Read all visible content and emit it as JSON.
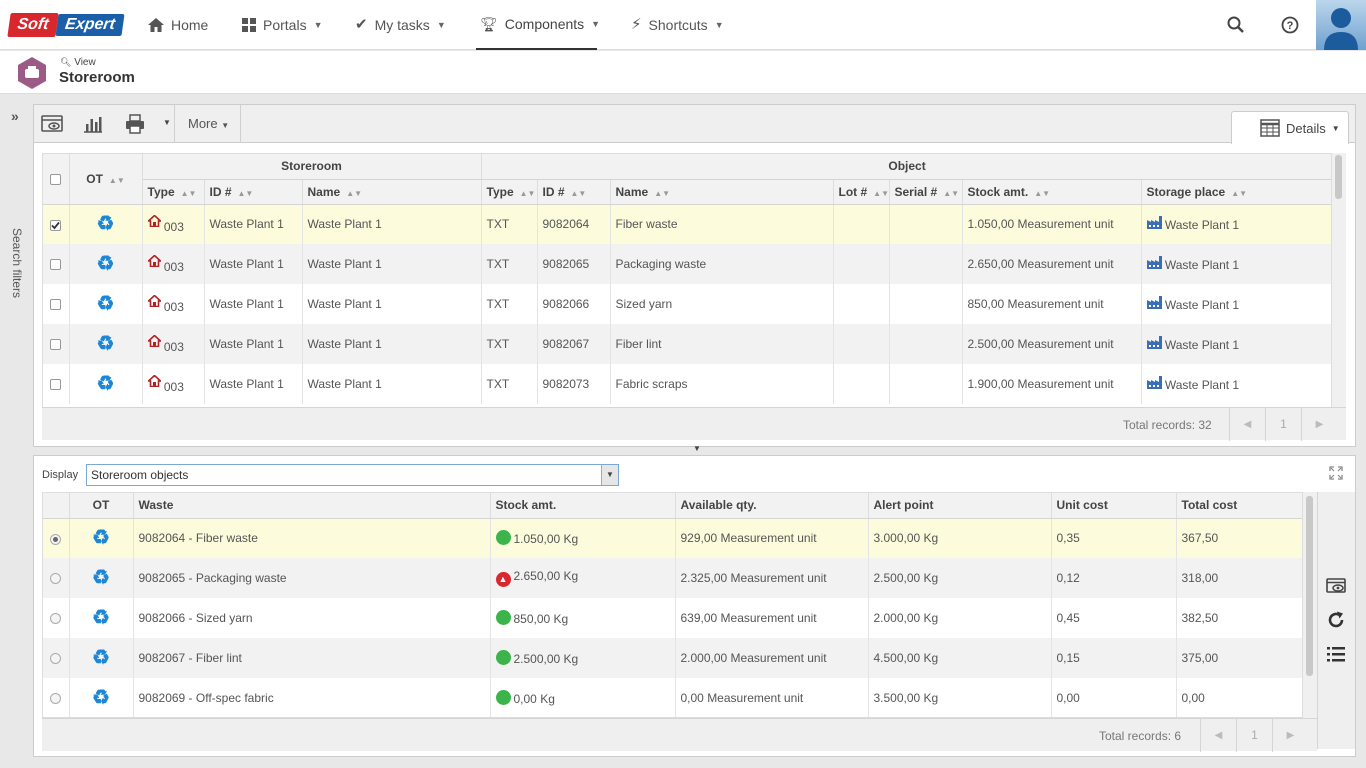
{
  "brand": {
    "soft": "Soft",
    "expert": "Expert"
  },
  "nav": {
    "home": "Home",
    "portals": "Portals",
    "my_tasks": "My tasks",
    "components": "Components",
    "shortcuts": "Shortcuts"
  },
  "header": {
    "view_label": "View",
    "title": "Storeroom"
  },
  "side_filters": {
    "label": "Search filters"
  },
  "toolbar": {
    "more": "More",
    "details": "Details"
  },
  "top_grid": {
    "group_storeroom": "Storeroom",
    "group_object": "Object",
    "col_ot": "OT",
    "columns": {
      "type": "Type",
      "id": "ID #",
      "name": "Name",
      "obj_type": "Type",
      "obj_id": "ID #",
      "obj_name": "Name",
      "lot": "Lot #",
      "serial": "Serial #",
      "stock": "Stock amt.",
      "storage": "Storage place"
    },
    "rows": [
      {
        "checked": true,
        "type": "003",
        "id": "Waste Plant 1",
        "name": "Waste Plant 1",
        "obj_type": "TXT",
        "obj_id": "9082064",
        "obj_name": "Fiber waste",
        "lot": "",
        "serial": "",
        "stock": "1.050,00 Measurement unit",
        "storage": "Waste Plant 1"
      },
      {
        "checked": false,
        "type": "003",
        "id": "Waste Plant 1",
        "name": "Waste Plant 1",
        "obj_type": "TXT",
        "obj_id": "9082065",
        "obj_name": "Packaging waste",
        "lot": "",
        "serial": "",
        "stock": "2.650,00 Measurement unit",
        "storage": "Waste Plant 1"
      },
      {
        "checked": false,
        "type": "003",
        "id": "Waste Plant 1",
        "name": "Waste Plant 1",
        "obj_type": "TXT",
        "obj_id": "9082066",
        "obj_name": "Sized yarn",
        "lot": "",
        "serial": "",
        "stock": "850,00 Measurement unit",
        "storage": "Waste Plant 1"
      },
      {
        "checked": false,
        "type": "003",
        "id": "Waste Plant 1",
        "name": "Waste Plant 1",
        "obj_type": "TXT",
        "obj_id": "9082067",
        "obj_name": "Fiber lint",
        "lot": "",
        "serial": "",
        "stock": "2.500,00 Measurement unit",
        "storage": "Waste Plant 1"
      },
      {
        "checked": false,
        "type": "003",
        "id": "Waste Plant 1",
        "name": "Waste Plant 1",
        "obj_type": "TXT",
        "obj_id": "9082073",
        "obj_name": "Fabric scraps",
        "lot": "",
        "serial": "",
        "stock": "1.900,00 Measurement unit",
        "storage": "Waste Plant 1"
      }
    ],
    "total": "Total records: 32",
    "page": "1"
  },
  "display": {
    "label": "Display",
    "value": "Storeroom objects"
  },
  "bottom_grid": {
    "columns": {
      "ot": "OT",
      "waste": "Waste",
      "stock": "Stock amt.",
      "available": "Available qty.",
      "alert": "Alert point",
      "unit_cost": "Unit cost",
      "total_cost": "Total cost"
    },
    "rows": [
      {
        "selected": true,
        "status": "ok",
        "waste": "9082064 - Fiber waste",
        "stock": "1.050,00 Kg",
        "available": "929,00 Measurement unit",
        "alert": "3.000,00 Kg",
        "unit_cost": "0,35",
        "total_cost": "367,50"
      },
      {
        "selected": false,
        "status": "over",
        "waste": "9082065 - Packaging waste",
        "stock": "2.650,00 Kg",
        "available": "2.325,00 Measurement unit",
        "alert": "2.500,00 Kg",
        "unit_cost": "0,12",
        "total_cost": "318,00"
      },
      {
        "selected": false,
        "status": "ok",
        "waste": "9082066 - Sized yarn",
        "stock": "850,00 Kg",
        "available": "639,00 Measurement unit",
        "alert": "2.000,00 Kg",
        "unit_cost": "0,45",
        "total_cost": "382,50"
      },
      {
        "selected": false,
        "status": "ok",
        "waste": "9082067 - Fiber lint",
        "stock": "2.500,00 Kg",
        "available": "2.000,00 Measurement unit",
        "alert": "4.500,00 Kg",
        "unit_cost": "0,15",
        "total_cost": "375,00"
      },
      {
        "selected": false,
        "status": "ok",
        "waste": "9082069 - Off-spec fabric",
        "stock": "0,00 Kg",
        "available": "0,00 Measurement unit",
        "alert": "3.500,00 Kg",
        "unit_cost": "0,00",
        "total_cost": "0,00"
      }
    ],
    "total": "Total records: 6",
    "page": "1"
  },
  "colors": {
    "brand_red": "#d9272e",
    "brand_blue": "#1a5fa8",
    "selected_row": "#fcfcdc",
    "ok_status": "#3cb44b",
    "alert_status": "#d9272e",
    "recycle_icon": "#1e86d6"
  }
}
